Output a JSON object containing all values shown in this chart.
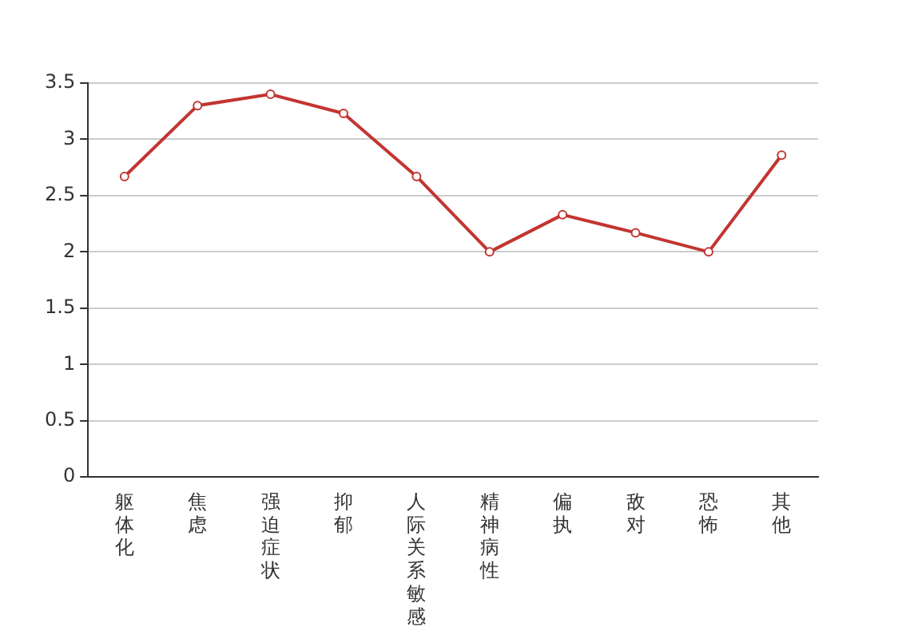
{
  "chart_data": {
    "type": "line",
    "categories": [
      "躯体化",
      "焦虑",
      "强迫症状",
      "抑郁",
      "人际关系敏感",
      "精神病性",
      "偏执",
      "敌对",
      "恐怖",
      "其他"
    ],
    "series": [
      {
        "color": "#c23531",
        "values": [
          2.67,
          3.3,
          3.4,
          3.23,
          2.67,
          2.0,
          2.33,
          2.17,
          2.0,
          2.86
        ]
      }
    ],
    "ylim": [
      0,
      3.5
    ],
    "yticks": [
      0,
      0.5,
      1,
      1.5,
      2,
      2.5,
      3,
      3.5
    ],
    "grid": "y",
    "marker": "circle",
    "line_style": "solid",
    "legend": false
  }
}
